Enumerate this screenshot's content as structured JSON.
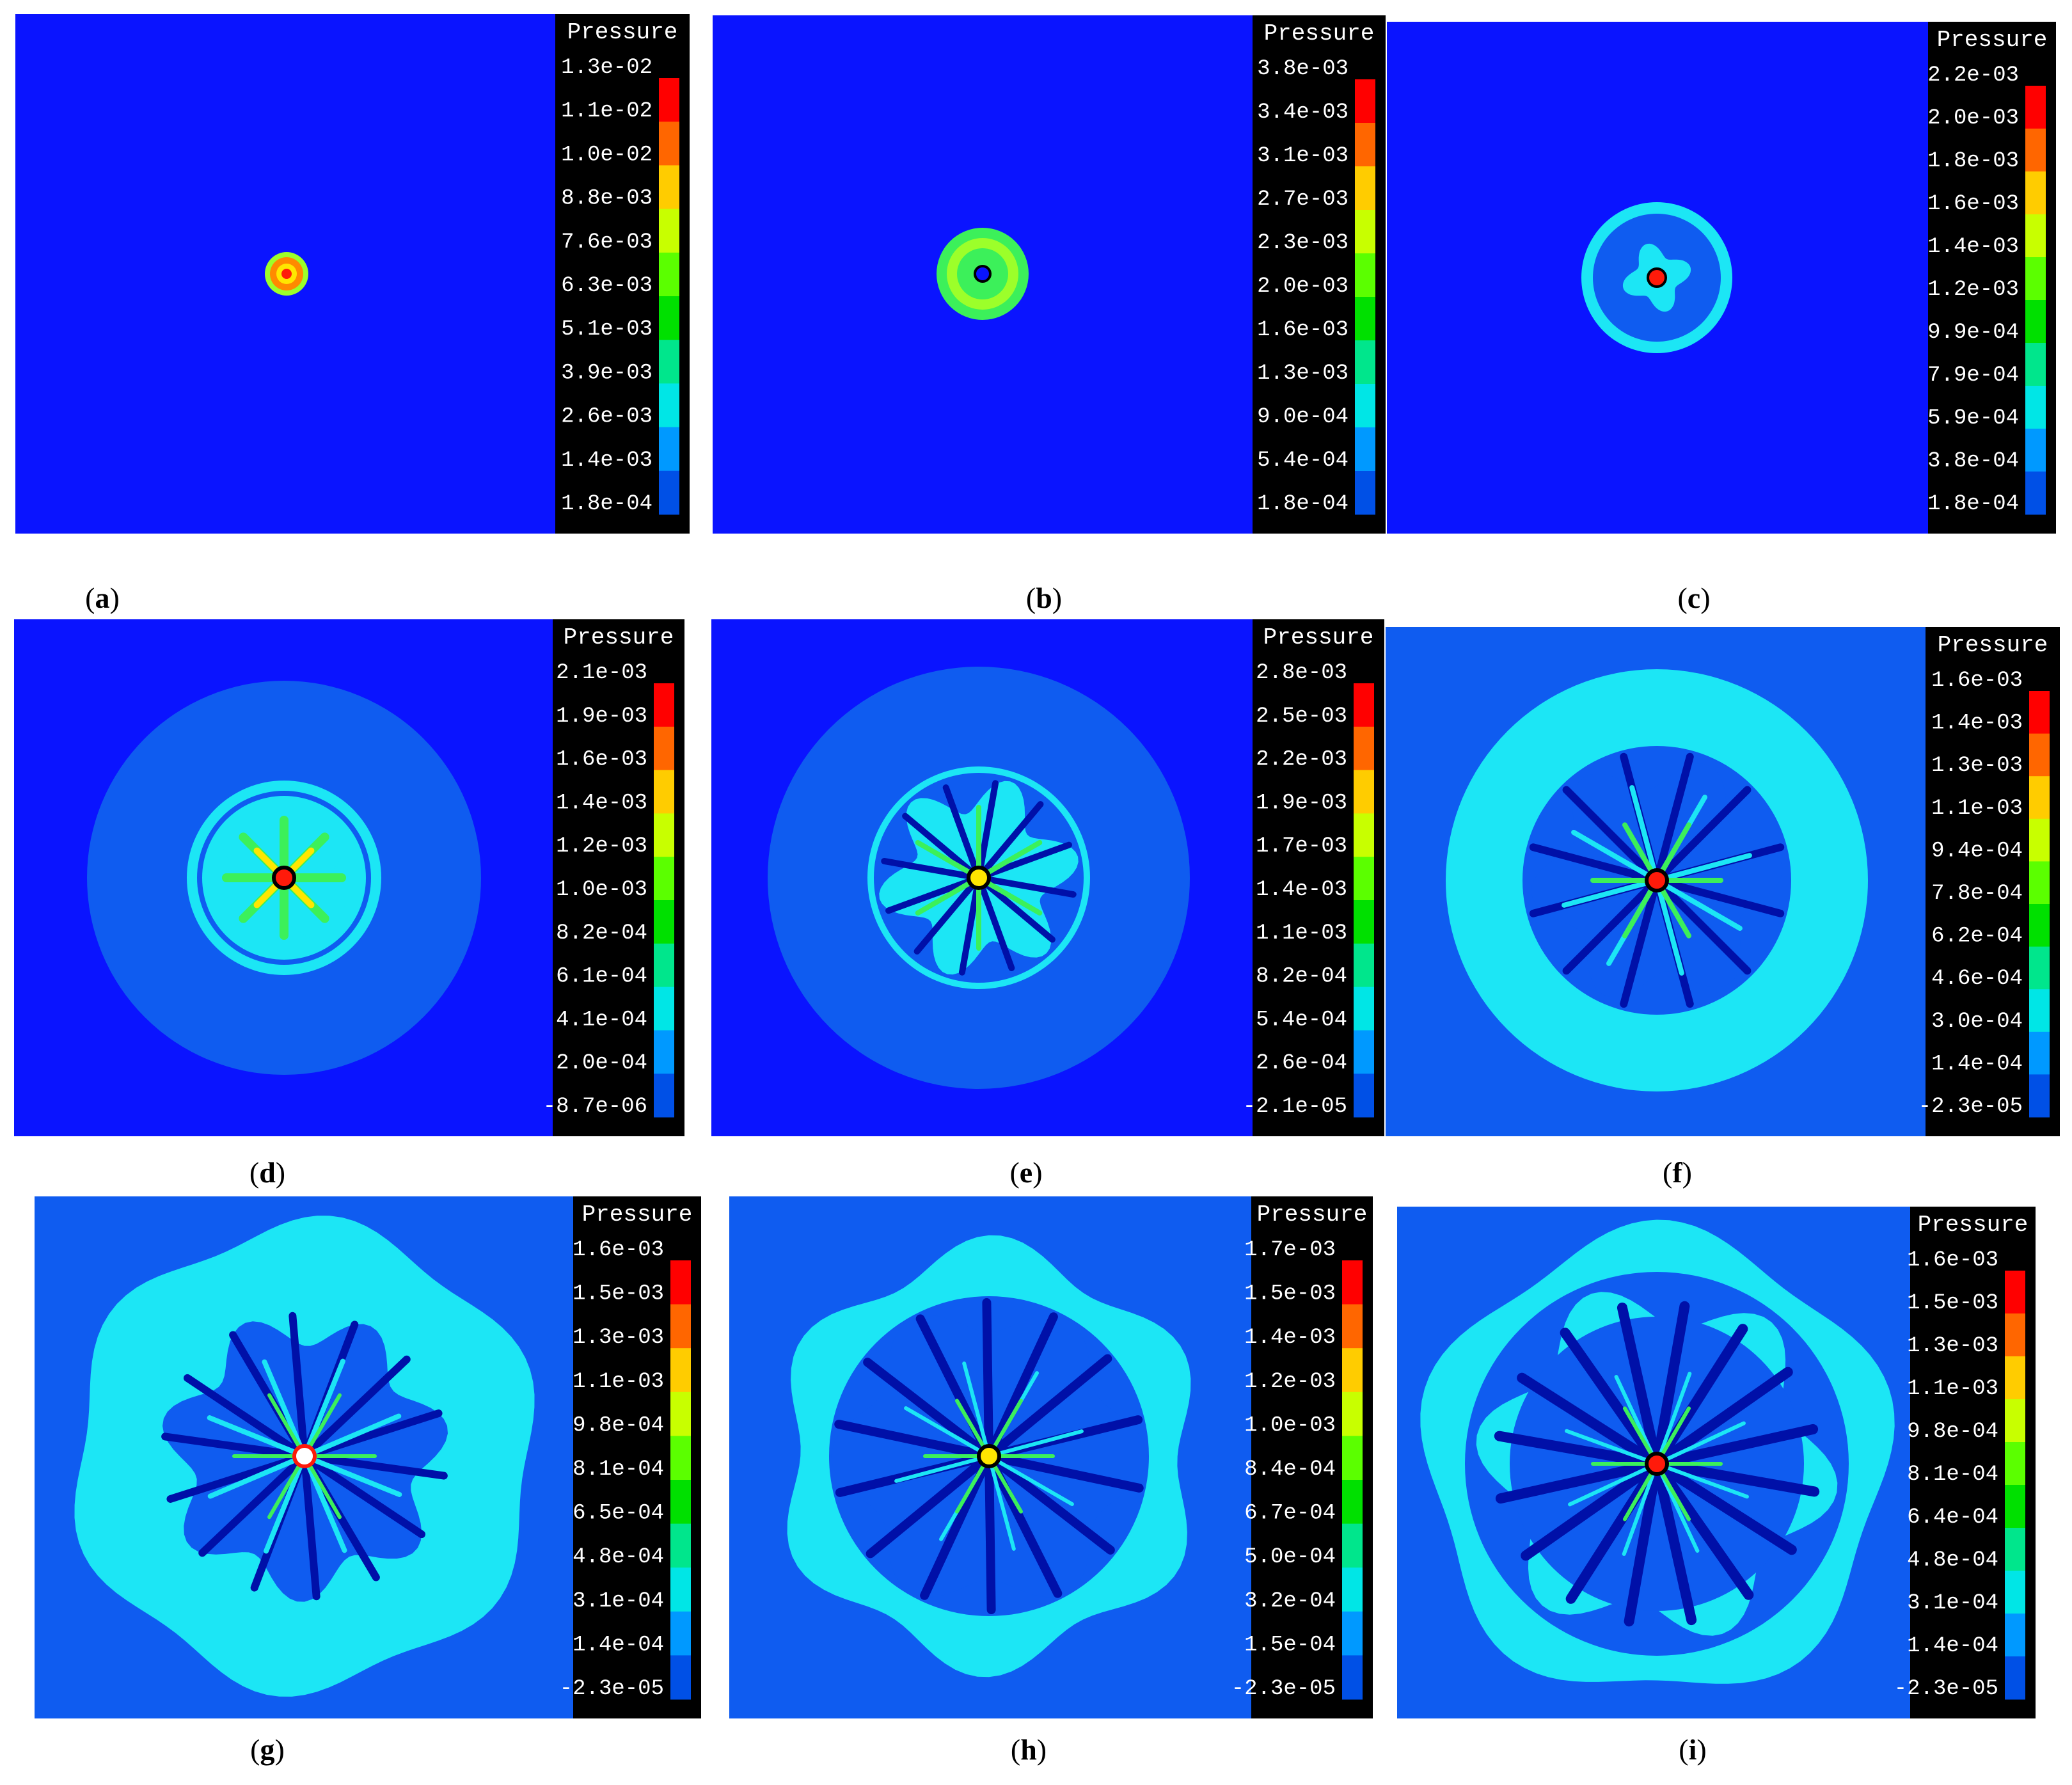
{
  "colorbar_title": "Pressure",
  "band_colors": [
    "#ff0000",
    "#ff6600",
    "#ffcc00",
    "#c8ff00",
    "#5bff00",
    "#00e000",
    "#00e68c",
    "#00e6e6",
    "#0099ff",
    "#0050e6",
    "#0000e6"
  ],
  "panels": [
    {
      "id": "a",
      "caption": "a",
      "background": "#0a14ff",
      "labels": [
        "1.3e-02",
        "1.1e-02",
        "1.0e-02",
        "8.8e-03",
        "7.6e-03",
        "6.3e-03",
        "5.1e-03",
        "3.9e-03",
        "2.6e-03",
        "1.4e-03",
        "1.8e-04"
      ]
    },
    {
      "id": "b",
      "caption": "b",
      "background": "#0a14ff",
      "labels": [
        "3.8e-03",
        "3.4e-03",
        "3.1e-03",
        "2.7e-03",
        "2.3e-03",
        "2.0e-03",
        "1.6e-03",
        "1.3e-03",
        "9.0e-04",
        "5.4e-04",
        "1.8e-04"
      ]
    },
    {
      "id": "c",
      "caption": "c",
      "background": "#0a14ff",
      "labels": [
        "2.2e-03",
        "2.0e-03",
        "1.8e-03",
        "1.6e-03",
        "1.4e-03",
        "1.2e-03",
        "9.9e-04",
        "7.9e-04",
        "5.9e-04",
        "3.8e-04",
        "1.8e-04"
      ]
    },
    {
      "id": "d",
      "caption": "d",
      "background": "#0a14ff",
      "labels": [
        "2.1e-03",
        "1.9e-03",
        "1.6e-03",
        "1.4e-03",
        "1.2e-03",
        "1.0e-03",
        "8.2e-04",
        "6.1e-04",
        "4.1e-04",
        "2.0e-04",
        "-8.7e-06"
      ]
    },
    {
      "id": "e",
      "caption": "e",
      "background": "#0a14ff",
      "labels": [
        "2.8e-03",
        "2.5e-03",
        "2.2e-03",
        "1.9e-03",
        "1.7e-03",
        "1.4e-03",
        "1.1e-03",
        "8.2e-04",
        "5.4e-04",
        "2.6e-04",
        "-2.1e-05"
      ]
    },
    {
      "id": "f",
      "caption": "f",
      "background": "#0f5cf0",
      "labels": [
        "1.6e-03",
        "1.4e-03",
        "1.3e-03",
        "1.1e-03",
        "9.4e-04",
        "7.8e-04",
        "6.2e-04",
        "4.6e-04",
        "3.0e-04",
        "1.4e-04",
        "-2.3e-05"
      ]
    },
    {
      "id": "g",
      "caption": "g",
      "background": "#0f5cf0",
      "labels": [
        "1.6e-03",
        "1.5e-03",
        "1.3e-03",
        "1.1e-03",
        "9.8e-04",
        "8.1e-04",
        "6.5e-04",
        "4.8e-04",
        "3.1e-04",
        "1.4e-04",
        "-2.3e-05"
      ]
    },
    {
      "id": "h",
      "caption": "h",
      "background": "#0f5cf0",
      "labels": [
        "1.7e-03",
        "1.5e-03",
        "1.4e-03",
        "1.2e-03",
        "1.0e-03",
        "8.4e-04",
        "6.7e-04",
        "5.0e-04",
        "3.2e-04",
        "1.5e-04",
        "-2.3e-05"
      ]
    },
    {
      "id": "i",
      "caption": "i",
      "background": "#0f5cf0",
      "labels": [
        "1.6e-03",
        "1.5e-03",
        "1.3e-03",
        "1.1e-03",
        "9.8e-04",
        "8.1e-04",
        "6.4e-04",
        "4.8e-04",
        "3.1e-04",
        "1.4e-04",
        "-2.3e-05"
      ]
    }
  ]
}
